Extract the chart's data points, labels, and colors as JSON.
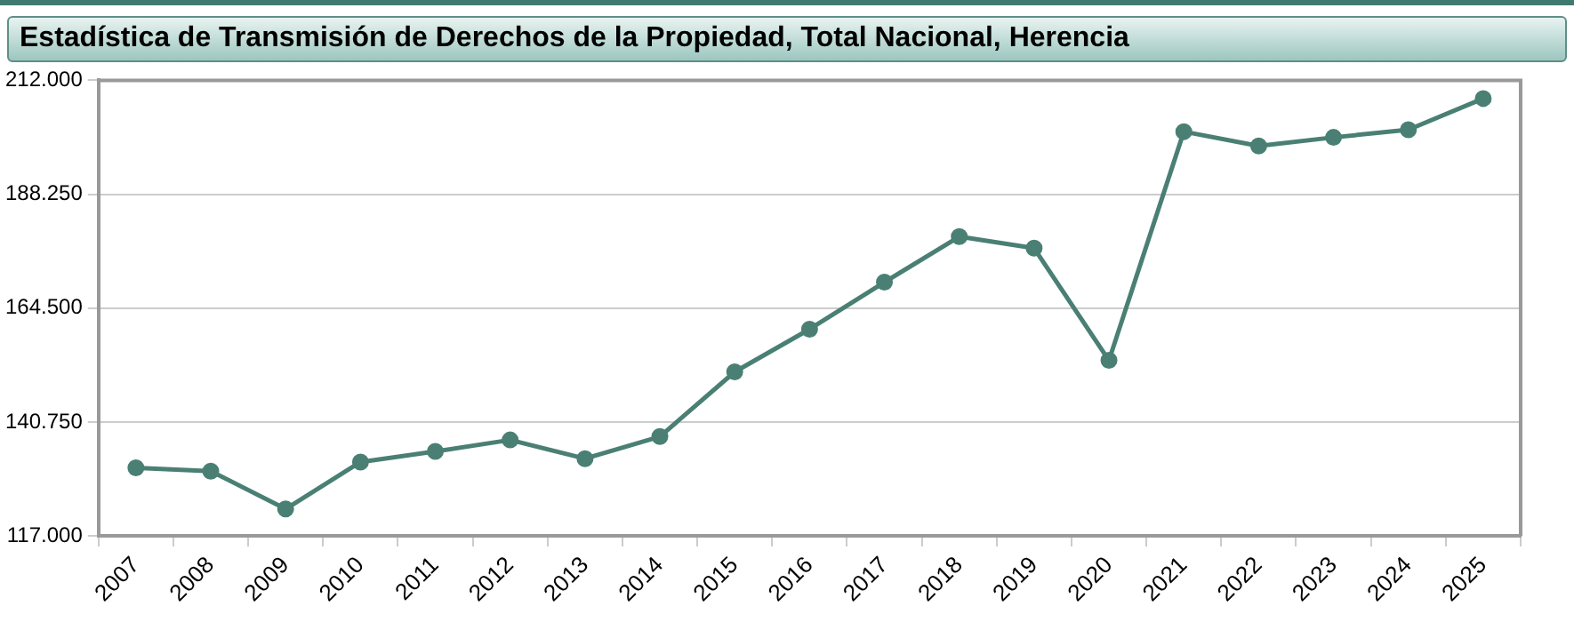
{
  "chart_data": {
    "type": "line",
    "title": "Estadística de Transmisión de Derechos de la Propiedad, Total Nacional, Herencia",
    "categories": [
      "2007",
      "2008",
      "2009",
      "2010",
      "2011",
      "2012",
      "2013",
      "2014",
      "2015",
      "2016",
      "2017",
      "2018",
      "2019",
      "2020",
      "2021",
      "2022",
      "2023",
      "2024",
      "2025"
    ],
    "series": [
      {
        "color": "#4a7f74",
        "values": [
          131200,
          130500,
          122600,
          132400,
          134600,
          137000,
          133100,
          137700,
          151200,
          160100,
          169900,
          179400,
          177000,
          153600,
          201300,
          198300,
          200100,
          201700,
          208200
        ]
      }
    ],
    "ylim": [
      117000,
      212000
    ],
    "yticks": [
      {
        "value": 117000,
        "label": "117.000"
      },
      {
        "value": 140750,
        "label": "140.750"
      },
      {
        "value": 164500,
        "label": "164.500"
      },
      {
        "value": 188250,
        "label": "188.250"
      },
      {
        "value": 212000,
        "label": "212.000"
      }
    ],
    "grid": "y",
    "legend": false,
    "marker": "circle",
    "line_style": "solid"
  }
}
